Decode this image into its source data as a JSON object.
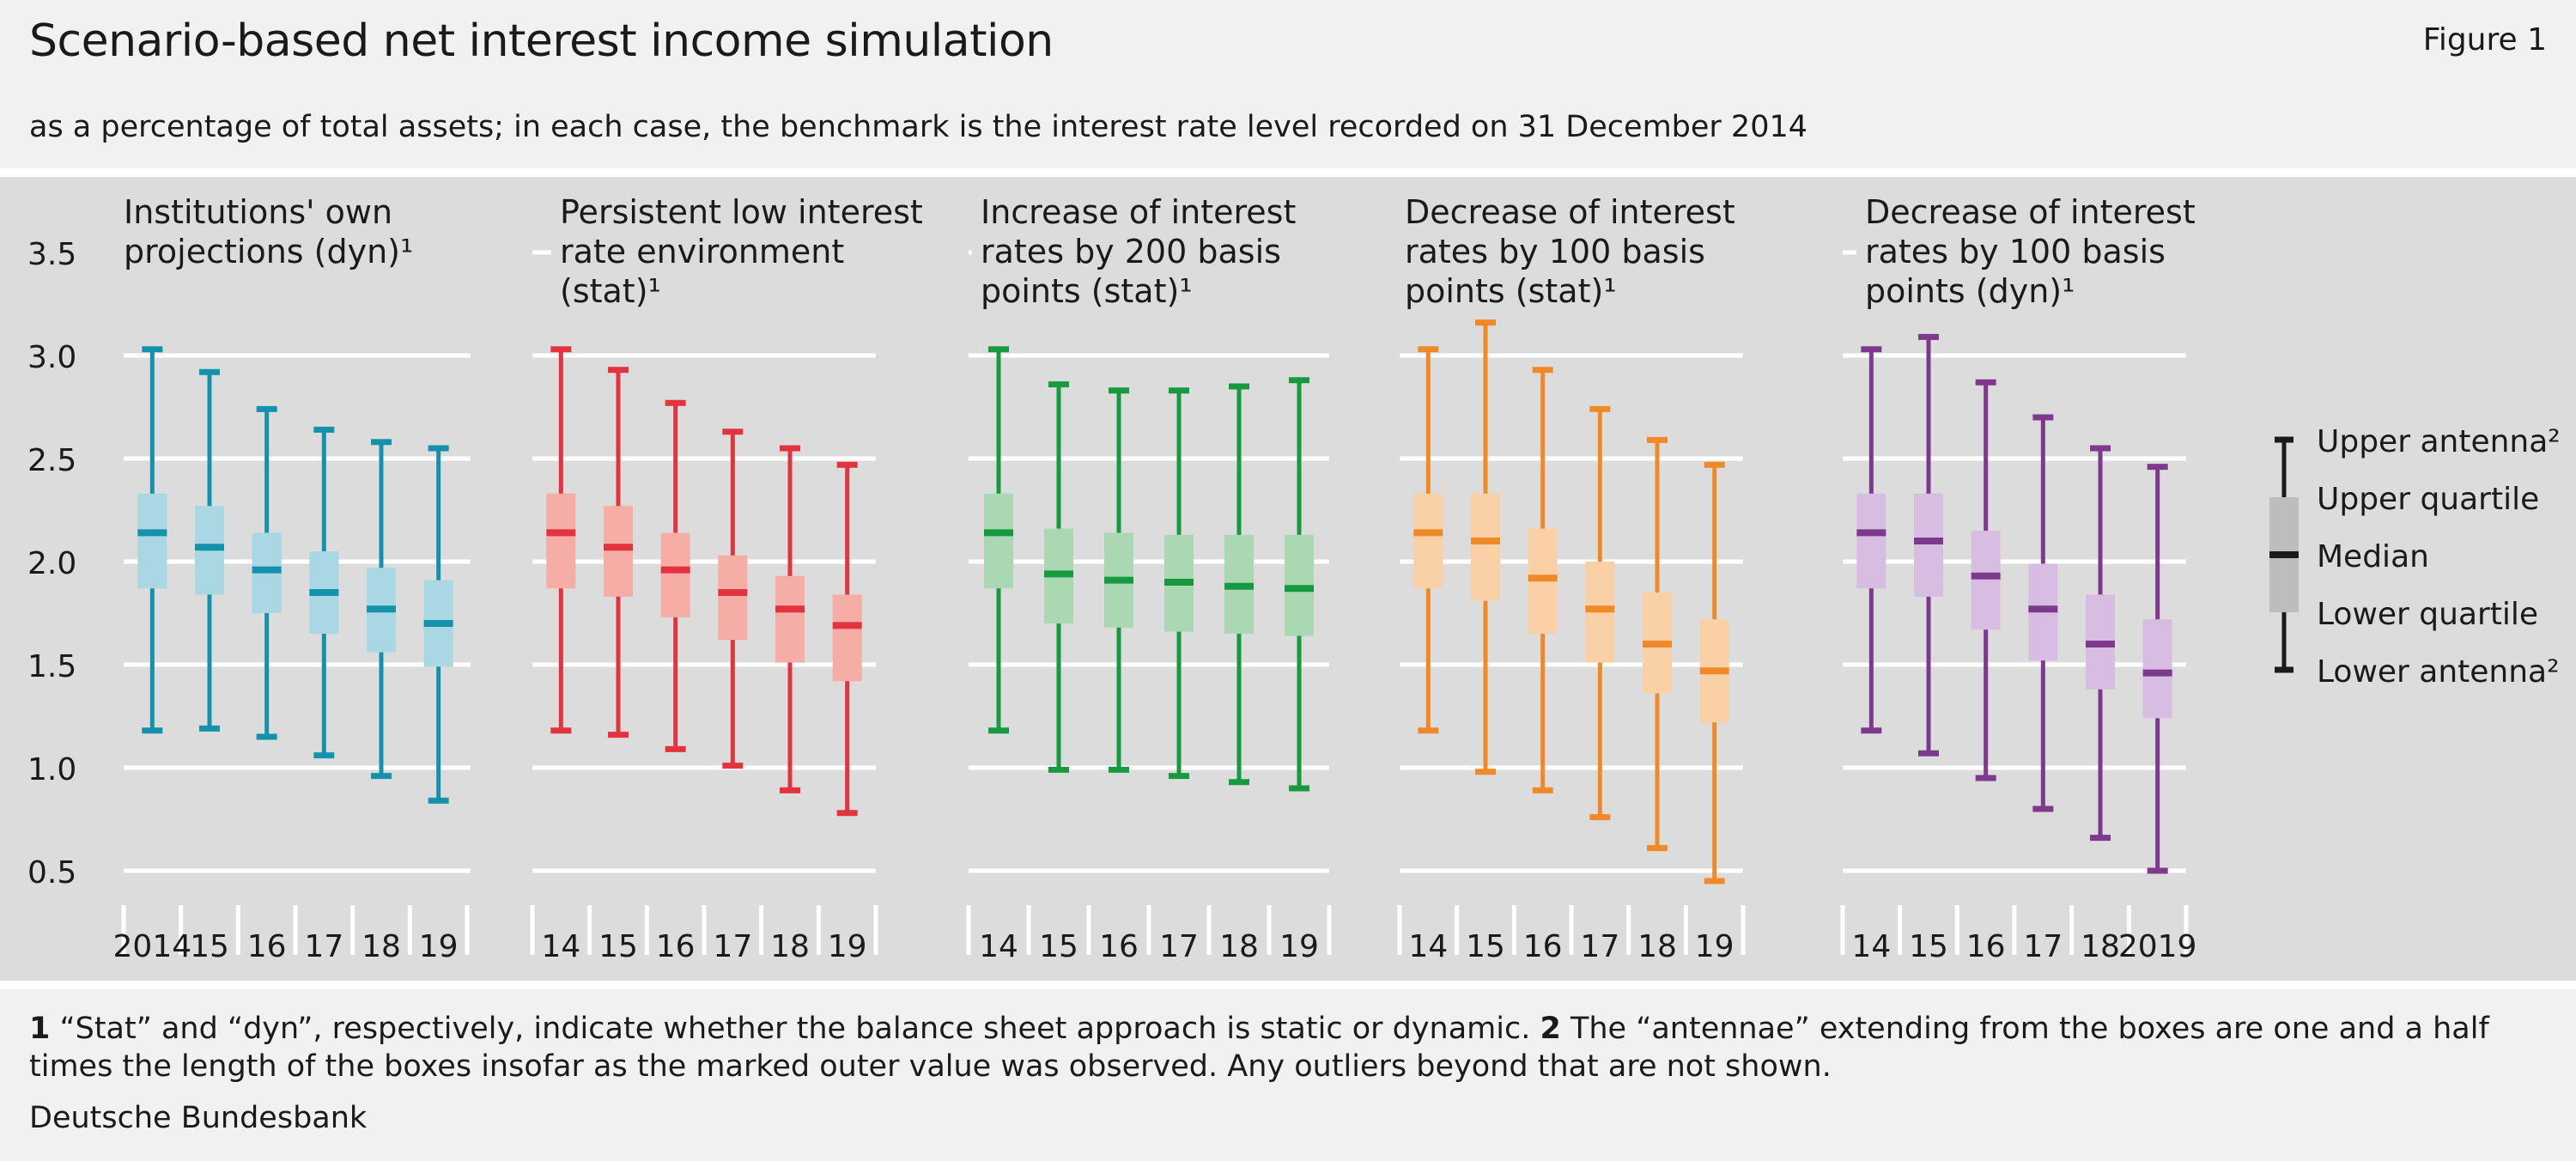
{
  "header": {
    "title": "Scenario-based net interest income simulation",
    "figure_label": "Figure 1",
    "subtitle": "as a percentage of total assets; in each case, the benchmark is the interest rate level recorded on 31 December 2014"
  },
  "footer": {
    "note1_num": "1",
    "note1_text": " “Stat” and “dyn”, respectively, indicate whether the balance sheet approach is static or dynamic. ",
    "note2_num": "2",
    "note2_text": " The “antennae” extending from the boxes are one and a half times the length of the boxes insofar as the marked outer value was observed. Any outliers beyond that are not shown.",
    "source": "Deutsche Bundesbank"
  },
  "chart_data": {
    "type": "boxplot",
    "ylim": [
      0.5,
      3.5
    ],
    "yticks": [
      "0.5",
      "1.0",
      "1.5",
      "2.0",
      "2.5",
      "3.0",
      "3.5"
    ],
    "grid": true,
    "legend": {
      "position": "right",
      "items": [
        "Upper antenna²",
        "Upper quartile",
        "Median",
        "Lower quartile",
        "Lower antenna²"
      ]
    },
    "panels": [
      {
        "title_lines": [
          "Institutions' own",
          "projections (dyn)¹"
        ],
        "color": "#1592ab",
        "box_color": "#a9d7e3",
        "categories": [
          "2014",
          "15",
          "16",
          "17",
          "18",
          "19"
        ],
        "boxes": [
          {
            "low": 1.18,
            "q1": 1.87,
            "median": 2.14,
            "q3": 2.33,
            "high": 3.03
          },
          {
            "low": 1.19,
            "q1": 1.84,
            "median": 2.07,
            "q3": 2.27,
            "high": 2.92
          },
          {
            "low": 1.15,
            "q1": 1.75,
            "median": 1.96,
            "q3": 2.14,
            "high": 2.74
          },
          {
            "low": 1.06,
            "q1": 1.65,
            "median": 1.85,
            "q3": 2.05,
            "high": 2.64
          },
          {
            "low": 0.96,
            "q1": 1.56,
            "median": 1.77,
            "q3": 1.97,
            "high": 2.58
          },
          {
            "low": 0.84,
            "q1": 1.49,
            "median": 1.7,
            "q3": 1.91,
            "high": 2.55
          }
        ]
      },
      {
        "title_lines": [
          "Persistent low interest",
          "rate environment",
          "(stat)¹"
        ],
        "color": "#e2333f",
        "box_color": "#f5ada6",
        "categories": [
          "14",
          "15",
          "16",
          "17",
          "18",
          "19"
        ],
        "boxes": [
          {
            "low": 1.18,
            "q1": 1.87,
            "median": 2.14,
            "q3": 2.33,
            "high": 3.03
          },
          {
            "low": 1.16,
            "q1": 1.83,
            "median": 2.07,
            "q3": 2.27,
            "high": 2.93
          },
          {
            "low": 1.09,
            "q1": 1.73,
            "median": 1.96,
            "q3": 2.14,
            "high": 2.77
          },
          {
            "low": 1.01,
            "q1": 1.62,
            "median": 1.85,
            "q3": 2.03,
            "high": 2.63
          },
          {
            "low": 0.89,
            "q1": 1.51,
            "median": 1.77,
            "q3": 1.93,
            "high": 2.55
          },
          {
            "low": 0.78,
            "q1": 1.42,
            "median": 1.69,
            "q3": 1.84,
            "high": 2.47
          }
        ]
      },
      {
        "title_lines": [
          "Increase of interest",
          "rates by 200 basis",
          "points (stat)¹"
        ],
        "color": "#179a3f",
        "box_color": "#a9d8b3",
        "categories": [
          "14",
          "15",
          "16",
          "17",
          "18",
          "19"
        ],
        "boxes": [
          {
            "low": 1.18,
            "q1": 1.87,
            "median": 2.14,
            "q3": 2.33,
            "high": 3.03
          },
          {
            "low": 0.99,
            "q1": 1.7,
            "median": 1.94,
            "q3": 2.16,
            "high": 2.86
          },
          {
            "low": 0.99,
            "q1": 1.68,
            "median": 1.91,
            "q3": 2.14,
            "high": 2.83
          },
          {
            "low": 0.96,
            "q1": 1.66,
            "median": 1.9,
            "q3": 2.13,
            "high": 2.83
          },
          {
            "low": 0.93,
            "q1": 1.65,
            "median": 1.88,
            "q3": 2.13,
            "high": 2.85
          },
          {
            "low": 0.9,
            "q1": 1.64,
            "median": 1.87,
            "q3": 2.13,
            "high": 2.88
          }
        ]
      },
      {
        "title_lines": [
          "Decrease of interest",
          "rates by 100 basis",
          "points (stat)¹"
        ],
        "color": "#f08a29",
        "box_color": "#fad1a7",
        "categories": [
          "14",
          "15",
          "16",
          "17",
          "18",
          "19"
        ],
        "boxes": [
          {
            "low": 1.18,
            "q1": 1.87,
            "median": 2.14,
            "q3": 2.33,
            "high": 3.03
          },
          {
            "low": 0.98,
            "q1": 1.81,
            "median": 2.1,
            "q3": 2.33,
            "high": 3.16
          },
          {
            "low": 0.89,
            "q1": 1.65,
            "median": 1.92,
            "q3": 2.16,
            "high": 2.93
          },
          {
            "low": 0.76,
            "q1": 1.51,
            "median": 1.77,
            "q3": 2.0,
            "high": 2.74
          },
          {
            "low": 0.61,
            "q1": 1.36,
            "median": 1.6,
            "q3": 1.85,
            "high": 2.59
          },
          {
            "low": 0.45,
            "q1": 1.22,
            "median": 1.47,
            "q3": 1.72,
            "high": 2.47
          }
        ]
      },
      {
        "title_lines": [
          "Decrease of interest",
          "rates by 100 basis",
          "points (dyn)¹"
        ],
        "color": "#7d3a8d",
        "box_color": "#d8bde3",
        "categories": [
          "14",
          "15",
          "16",
          "17",
          "18",
          "2019"
        ],
        "boxes": [
          {
            "low": 1.18,
            "q1": 1.87,
            "median": 2.14,
            "q3": 2.33,
            "high": 3.03
          },
          {
            "low": 1.07,
            "q1": 1.83,
            "median": 2.1,
            "q3": 2.33,
            "high": 3.09
          },
          {
            "low": 0.95,
            "q1": 1.67,
            "median": 1.93,
            "q3": 2.15,
            "high": 2.87
          },
          {
            "low": 0.8,
            "q1": 1.52,
            "median": 1.77,
            "q3": 1.99,
            "high": 2.7
          },
          {
            "low": 0.66,
            "q1": 1.38,
            "median": 1.6,
            "q3": 1.84,
            "high": 2.55
          },
          {
            "low": 0.5,
            "q1": 1.24,
            "median": 1.46,
            "q3": 1.72,
            "high": 2.46
          }
        ]
      }
    ]
  }
}
